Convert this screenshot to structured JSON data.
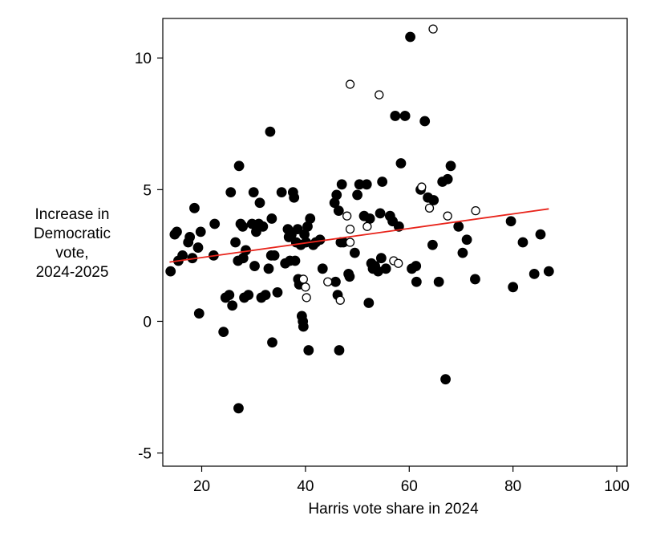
{
  "chart_data": {
    "type": "scatter",
    "title": "",
    "xlabel": "Harris vote share in 2024",
    "ylabel_lines": [
      "Increase in",
      "Democratic",
      "vote,",
      "2024-2025"
    ],
    "xlim": [
      12.5,
      102
    ],
    "ylim": [
      -5.5,
      11.5
    ],
    "xticks": [
      20,
      40,
      60,
      80,
      100
    ],
    "yticks": [
      -5,
      0,
      5,
      10
    ],
    "xtick_labels": [
      "20",
      "40",
      "60",
      "80",
      "100"
    ],
    "ytick_labels": [
      "-5",
      "0",
      "5",
      "10"
    ],
    "grid": false,
    "legend": "none",
    "colors": {
      "filled": "#000000",
      "hollow_fill": "#ffffff",
      "fit_line": "#e8241b",
      "axis": "#000000"
    },
    "series": [
      {
        "marker": "filled-circle",
        "points": [
          [
            14.0,
            1.9
          ],
          [
            14.8,
            3.3
          ],
          [
            15.2,
            3.4
          ],
          [
            15.5,
            2.3
          ],
          [
            16.3,
            2.5
          ],
          [
            17.4,
            3.0
          ],
          [
            17.7,
            3.2
          ],
          [
            18.2,
            2.4
          ],
          [
            18.6,
            4.3
          ],
          [
            19.3,
            2.8
          ],
          [
            19.5,
            0.3
          ],
          [
            19.8,
            3.4
          ],
          [
            22.3,
            2.5
          ],
          [
            22.5,
            3.7
          ],
          [
            24.2,
            -0.4
          ],
          [
            24.6,
            0.9
          ],
          [
            25.3,
            1.0
          ],
          [
            25.6,
            4.9
          ],
          [
            25.9,
            0.6
          ],
          [
            26.5,
            3.0
          ],
          [
            27.0,
            2.3
          ],
          [
            27.2,
            5.9
          ],
          [
            27.1,
            -3.3
          ],
          [
            27.5,
            3.7
          ],
          [
            27.9,
            3.6
          ],
          [
            28.0,
            2.4
          ],
          [
            28.2,
            0.9
          ],
          [
            28.5,
            2.7
          ],
          [
            29.0,
            1.0
          ],
          [
            29.7,
            3.7
          ],
          [
            30.0,
            4.9
          ],
          [
            30.2,
            2.1
          ],
          [
            30.5,
            3.4
          ],
          [
            31.0,
            3.7
          ],
          [
            31.2,
            4.5
          ],
          [
            31.5,
            0.9
          ],
          [
            31.8,
            3.6
          ],
          [
            32.3,
            1.0
          ],
          [
            32.9,
            2.0
          ],
          [
            33.2,
            7.2
          ],
          [
            33.4,
            2.5
          ],
          [
            33.5,
            3.9
          ],
          [
            33.6,
            -0.8
          ],
          [
            34.0,
            2.5
          ],
          [
            34.6,
            1.1
          ],
          [
            35.4,
            4.9
          ],
          [
            36.1,
            2.2
          ],
          [
            36.6,
            3.5
          ],
          [
            36.8,
            3.2
          ],
          [
            37.0,
            2.3
          ],
          [
            37.3,
            3.3
          ],
          [
            37.6,
            4.9
          ],
          [
            37.8,
            4.7
          ],
          [
            38.0,
            2.3
          ],
          [
            38.2,
            3.0
          ],
          [
            38.5,
            3.5
          ],
          [
            38.6,
            1.6
          ],
          [
            38.8,
            1.4
          ],
          [
            39.1,
            2.9
          ],
          [
            39.3,
            0.2
          ],
          [
            39.5,
            0.0
          ],
          [
            39.6,
            -0.2
          ],
          [
            39.8,
            3.3
          ],
          [
            40.1,
            3.0
          ],
          [
            40.4,
            3.6
          ],
          [
            40.6,
            -1.1
          ],
          [
            40.9,
            3.9
          ],
          [
            41.5,
            2.9
          ],
          [
            42.0,
            3.0
          ],
          [
            42.8,
            3.1
          ],
          [
            43.3,
            2.0
          ],
          [
            45.6,
            4.5
          ],
          [
            45.8,
            1.5
          ],
          [
            46.0,
            4.8
          ],
          [
            46.2,
            1.0
          ],
          [
            46.4,
            4.2
          ],
          [
            46.5,
            -1.1
          ],
          [
            46.8,
            3.0
          ],
          [
            47.0,
            5.2
          ],
          [
            47.3,
            3.0
          ],
          [
            48.3,
            1.8
          ],
          [
            48.5,
            1.7
          ],
          [
            49.5,
            2.6
          ],
          [
            50.0,
            4.8
          ],
          [
            50.4,
            5.2
          ],
          [
            51.3,
            4.0
          ],
          [
            51.8,
            5.2
          ],
          [
            52.2,
            0.7
          ],
          [
            52.4,
            3.9
          ],
          [
            52.7,
            2.2
          ],
          [
            53.0,
            2.0
          ],
          [
            53.4,
            2.1
          ],
          [
            54.0,
            1.9
          ],
          [
            54.4,
            4.1
          ],
          [
            54.6,
            2.4
          ],
          [
            54.8,
            5.3
          ],
          [
            55.5,
            2.0
          ],
          [
            56.3,
            4.0
          ],
          [
            56.8,
            3.8
          ],
          [
            57.3,
            7.8
          ],
          [
            58.0,
            3.6
          ],
          [
            58.4,
            6.0
          ],
          [
            59.2,
            7.8
          ],
          [
            60.2,
            10.8
          ],
          [
            60.5,
            2.0
          ],
          [
            61.3,
            2.1
          ],
          [
            61.4,
            1.5
          ],
          [
            62.2,
            5.0
          ],
          [
            63.0,
            7.6
          ],
          [
            63.6,
            4.7
          ],
          [
            64.5,
            2.9
          ],
          [
            64.7,
            4.6
          ],
          [
            65.7,
            1.5
          ],
          [
            66.4,
            5.3
          ],
          [
            67.0,
            -2.2
          ],
          [
            67.4,
            5.4
          ],
          [
            68.0,
            5.9
          ],
          [
            69.5,
            3.6
          ],
          [
            70.3,
            2.6
          ],
          [
            71.1,
            3.1
          ],
          [
            72.7,
            1.6
          ],
          [
            79.6,
            3.8
          ],
          [
            80.0,
            1.3
          ],
          [
            81.9,
            3.0
          ],
          [
            84.1,
            1.8
          ],
          [
            85.3,
            3.3
          ],
          [
            86.9,
            1.9
          ]
        ]
      },
      {
        "marker": "hollow-circle",
        "points": [
          [
            39.6,
            1.6
          ],
          [
            40.0,
            1.3
          ],
          [
            40.2,
            0.9
          ],
          [
            44.3,
            1.5
          ],
          [
            46.7,
            0.8
          ],
          [
            48.0,
            4.0
          ],
          [
            48.6,
            3.5
          ],
          [
            48.6,
            3.0
          ],
          [
            48.6,
            9.0
          ],
          [
            51.9,
            3.6
          ],
          [
            54.2,
            8.6
          ],
          [
            57.0,
            2.3
          ],
          [
            57.9,
            2.2
          ],
          [
            62.4,
            5.1
          ],
          [
            63.9,
            4.3
          ],
          [
            64.6,
            11.1
          ],
          [
            67.4,
            4.0
          ],
          [
            72.8,
            4.2
          ]
        ]
      }
    ],
    "fit_line": {
      "x": [
        13.8,
        86.9
      ],
      "y": [
        2.25,
        4.27
      ]
    }
  }
}
